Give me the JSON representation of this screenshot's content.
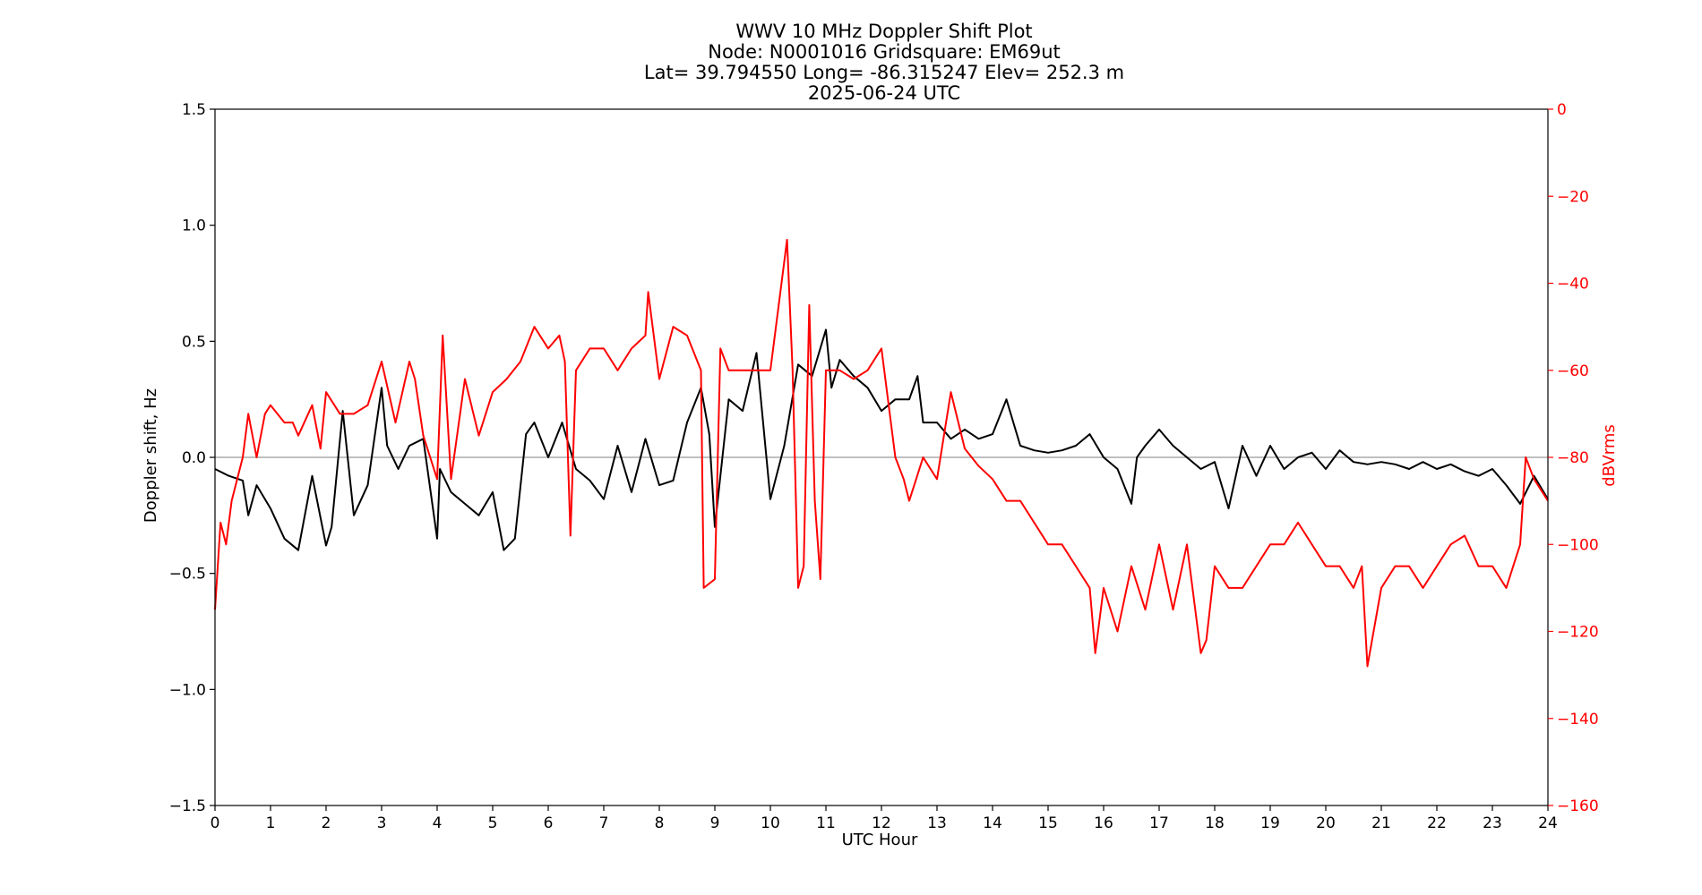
{
  "chart_data": {
    "type": "line",
    "title_lines": [
      "WWV 10 MHz Doppler Shift Plot",
      "Node:  N0001016     Gridsquare:  EM69ut",
      "Lat= 39.794550    Long= -86.315247    Elev= 252.3 m",
      "2025-06-24  UTC"
    ],
    "xlabel": "UTC Hour",
    "ylabel_left": "Doppler shift, Hz",
    "ylabel_right": "dBVrms",
    "xlim": [
      0,
      24
    ],
    "ylim_left": [
      -1.5,
      1.5
    ],
    "ylim_right": [
      -160,
      0
    ],
    "x_ticks": [
      "0",
      "1",
      "2",
      "3",
      "4",
      "5",
      "6",
      "7",
      "8",
      "9",
      "10",
      "11",
      "12",
      "13",
      "14",
      "15",
      "16",
      "17",
      "18",
      "19",
      "20",
      "21",
      "22",
      "23",
      "24"
    ],
    "y_left_ticks": [
      "1.5",
      "1.0",
      "0.5",
      "0.0",
      "−0.5",
      "−1.0",
      "−1.5"
    ],
    "y_right_ticks": [
      "0",
      "−20",
      "−40",
      "−60",
      "−80",
      "−100",
      "−120",
      "−140",
      "−160"
    ],
    "zero_line": 0.0,
    "series": [
      {
        "color": "#000000",
        "axis": "left",
        "x": [
          0,
          0.25,
          0.5,
          0.6,
          0.75,
          1.0,
          1.25,
          1.5,
          1.75,
          2.0,
          2.1,
          2.3,
          2.5,
          2.75,
          3.0,
          3.1,
          3.3,
          3.5,
          3.75,
          4.0,
          4.05,
          4.25,
          4.5,
          4.75,
          5.0,
          5.2,
          5.4,
          5.6,
          5.75,
          6.0,
          6.25,
          6.5,
          6.75,
          7.0,
          7.25,
          7.5,
          7.75,
          8.0,
          8.25,
          8.5,
          8.75,
          8.9,
          9.0,
          9.25,
          9.5,
          9.75,
          10.0,
          10.25,
          10.5,
          10.75,
          11.0,
          11.1,
          11.25,
          11.5,
          11.75,
          12.0,
          12.25,
          12.5,
          12.65,
          12.75,
          13.0,
          13.25,
          13.5,
          13.75,
          14.0,
          14.25,
          14.5,
          14.75,
          15.0,
          15.25,
          15.5,
          15.75,
          16.0,
          16.25,
          16.5,
          16.6,
          16.75,
          17.0,
          17.25,
          17.5,
          17.75,
          18.0,
          18.25,
          18.5,
          18.75,
          19.0,
          19.25,
          19.5,
          19.75,
          20.0,
          20.25,
          20.5,
          20.75,
          21.0,
          21.25,
          21.5,
          21.75,
          22.0,
          22.25,
          22.5,
          22.75,
          23.0,
          23.25,
          23.5,
          23.75,
          24.0
        ],
        "y": [
          -0.05,
          -0.08,
          -0.1,
          -0.25,
          -0.12,
          -0.22,
          -0.35,
          -0.4,
          -0.08,
          -0.38,
          -0.3,
          0.2,
          -0.25,
          -0.12,
          0.3,
          0.05,
          -0.05,
          0.05,
          0.08,
          -0.35,
          -0.05,
          -0.15,
          -0.2,
          -0.25,
          -0.15,
          -0.4,
          -0.35,
          0.1,
          0.15,
          0.0,
          0.15,
          -0.05,
          -0.1,
          -0.18,
          0.05,
          -0.15,
          0.08,
          -0.12,
          -0.1,
          0.15,
          0.3,
          0.1,
          -0.3,
          0.25,
          0.2,
          0.45,
          -0.18,
          0.05,
          0.4,
          0.35,
          0.55,
          0.3,
          0.42,
          0.35,
          0.3,
          0.2,
          0.25,
          0.25,
          0.35,
          0.15,
          0.15,
          0.08,
          0.12,
          0.08,
          0.1,
          0.25,
          0.05,
          0.03,
          0.02,
          0.03,
          0.05,
          0.1,
          0.0,
          -0.05,
          -0.2,
          0.0,
          0.05,
          0.12,
          0.05,
          0.0,
          -0.05,
          -0.02,
          -0.22,
          0.05,
          -0.08,
          0.05,
          -0.05,
          0.0,
          0.02,
          -0.05,
          0.03,
          -0.02,
          -0.03,
          -0.02,
          -0.03,
          -0.05,
          -0.02,
          -0.05,
          -0.03,
          -0.06,
          -0.08,
          -0.05,
          -0.12,
          -0.2,
          -0.08,
          -0.18
        ]
      },
      {
        "color": "#ff0000",
        "axis": "right",
        "x": [
          0,
          0.1,
          0.2,
          0.3,
          0.5,
          0.6,
          0.75,
          0.9,
          1.0,
          1.25,
          1.4,
          1.5,
          1.75,
          1.9,
          2.0,
          2.25,
          2.5,
          2.75,
          3.0,
          3.25,
          3.5,
          3.6,
          3.75,
          4.0,
          4.1,
          4.25,
          4.5,
          4.75,
          5.0,
          5.25,
          5.5,
          5.75,
          6.0,
          6.2,
          6.3,
          6.4,
          6.5,
          6.75,
          7.0,
          7.25,
          7.5,
          7.75,
          7.8,
          8.0,
          8.25,
          8.5,
          8.75,
          8.8,
          9.0,
          9.1,
          9.25,
          9.5,
          9.75,
          10.0,
          10.25,
          10.3,
          10.4,
          10.5,
          10.6,
          10.7,
          10.8,
          10.9,
          11.0,
          11.25,
          11.5,
          11.75,
          12.0,
          12.25,
          12.4,
          12.5,
          12.75,
          13.0,
          13.25,
          13.5,
          13.75,
          14.0,
          14.25,
          14.5,
          14.75,
          15.0,
          15.25,
          15.5,
          15.75,
          15.85,
          16.0,
          16.25,
          16.5,
          16.75,
          17.0,
          17.25,
          17.5,
          17.75,
          17.85,
          18.0,
          18.25,
          18.5,
          18.75,
          19.0,
          19.25,
          19.5,
          19.75,
          20.0,
          20.25,
          20.5,
          20.65,
          20.75,
          21.0,
          21.25,
          21.5,
          21.75,
          22.0,
          22.25,
          22.5,
          22.75,
          23.0,
          23.25,
          23.5,
          23.6,
          23.75,
          24.0
        ],
        "y": [
          -115,
          -95,
          -100,
          -90,
          -80,
          -70,
          -80,
          -70,
          -68,
          -72,
          -72,
          -75,
          -68,
          -78,
          -65,
          -70,
          -70,
          -68,
          -58,
          -72,
          -58,
          -62,
          -75,
          -85,
          -52,
          -85,
          -62,
          -75,
          -65,
          -62,
          -58,
          -50,
          -55,
          -52,
          -58,
          -98,
          -60,
          -55,
          -55,
          -60,
          -55,
          -52,
          -42,
          -62,
          -50,
          -52,
          -60,
          -110,
          -108,
          -55,
          -60,
          -60,
          -60,
          -60,
          -35,
          -30,
          -60,
          -110,
          -105,
          -45,
          -90,
          -108,
          -60,
          -60,
          -62,
          -60,
          -55,
          -80,
          -85,
          -90,
          -80,
          -85,
          -65,
          -78,
          -82,
          -85,
          -90,
          -90,
          -95,
          -100,
          -100,
          -105,
          -110,
          -125,
          -110,
          -120,
          -105,
          -115,
          -100,
          -115,
          -100,
          -125,
          -122,
          -105,
          -110,
          -110,
          -105,
          -100,
          -100,
          -95,
          -100,
          -105,
          -105,
          -110,
          -105,
          -128,
          -110,
          -105,
          -105,
          -110,
          -105,
          -100,
          -98,
          -105,
          -105,
          -110,
          -100,
          -80,
          -85,
          -90
        ]
      }
    ]
  }
}
